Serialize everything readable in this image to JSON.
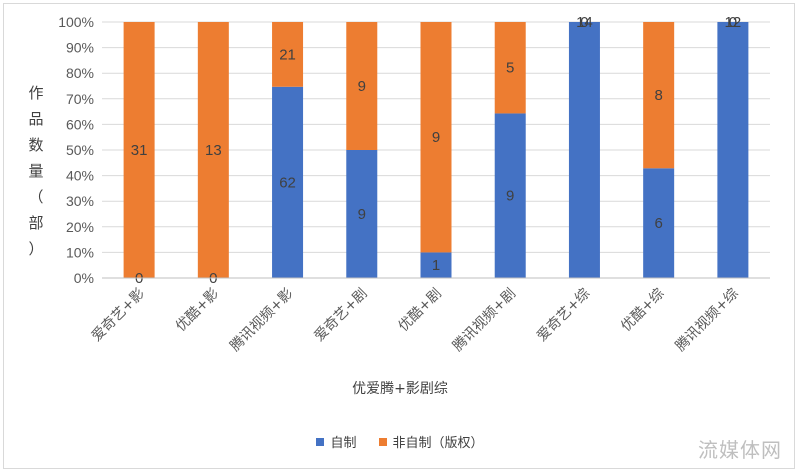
{
  "chart_data": {
    "type": "bar",
    "stacked": "percent",
    "categories": [
      "爱奇艺+影",
      "优酷+影",
      "腾讯视频+影",
      "爱奇艺+剧",
      "优酷+剧",
      "腾讯视频+剧",
      "爱奇艺+综",
      "优酷+综",
      "腾讯视频+综"
    ],
    "series": [
      {
        "name": "自制",
        "color": "#4472c4",
        "values": [
          0,
          0,
          62,
          9,
          1,
          9,
          14,
          6,
          12
        ]
      },
      {
        "name": "非自制（版权）",
        "color": "#ed7d31",
        "values": [
          31,
          13,
          21,
          9,
          9,
          5,
          0,
          8,
          0
        ]
      }
    ],
    "yticks": [
      "0%",
      "10%",
      "20%",
      "30%",
      "40%",
      "50%",
      "60%",
      "70%",
      "80%",
      "90%",
      "100%"
    ],
    "ylim": [
      0,
      100
    ],
    "ylabel": "作品数量（部）",
    "xlabel": "优爱腾+影剧综",
    "legend_position": "bottom",
    "grid": true
  },
  "watermark": "流媒体网"
}
